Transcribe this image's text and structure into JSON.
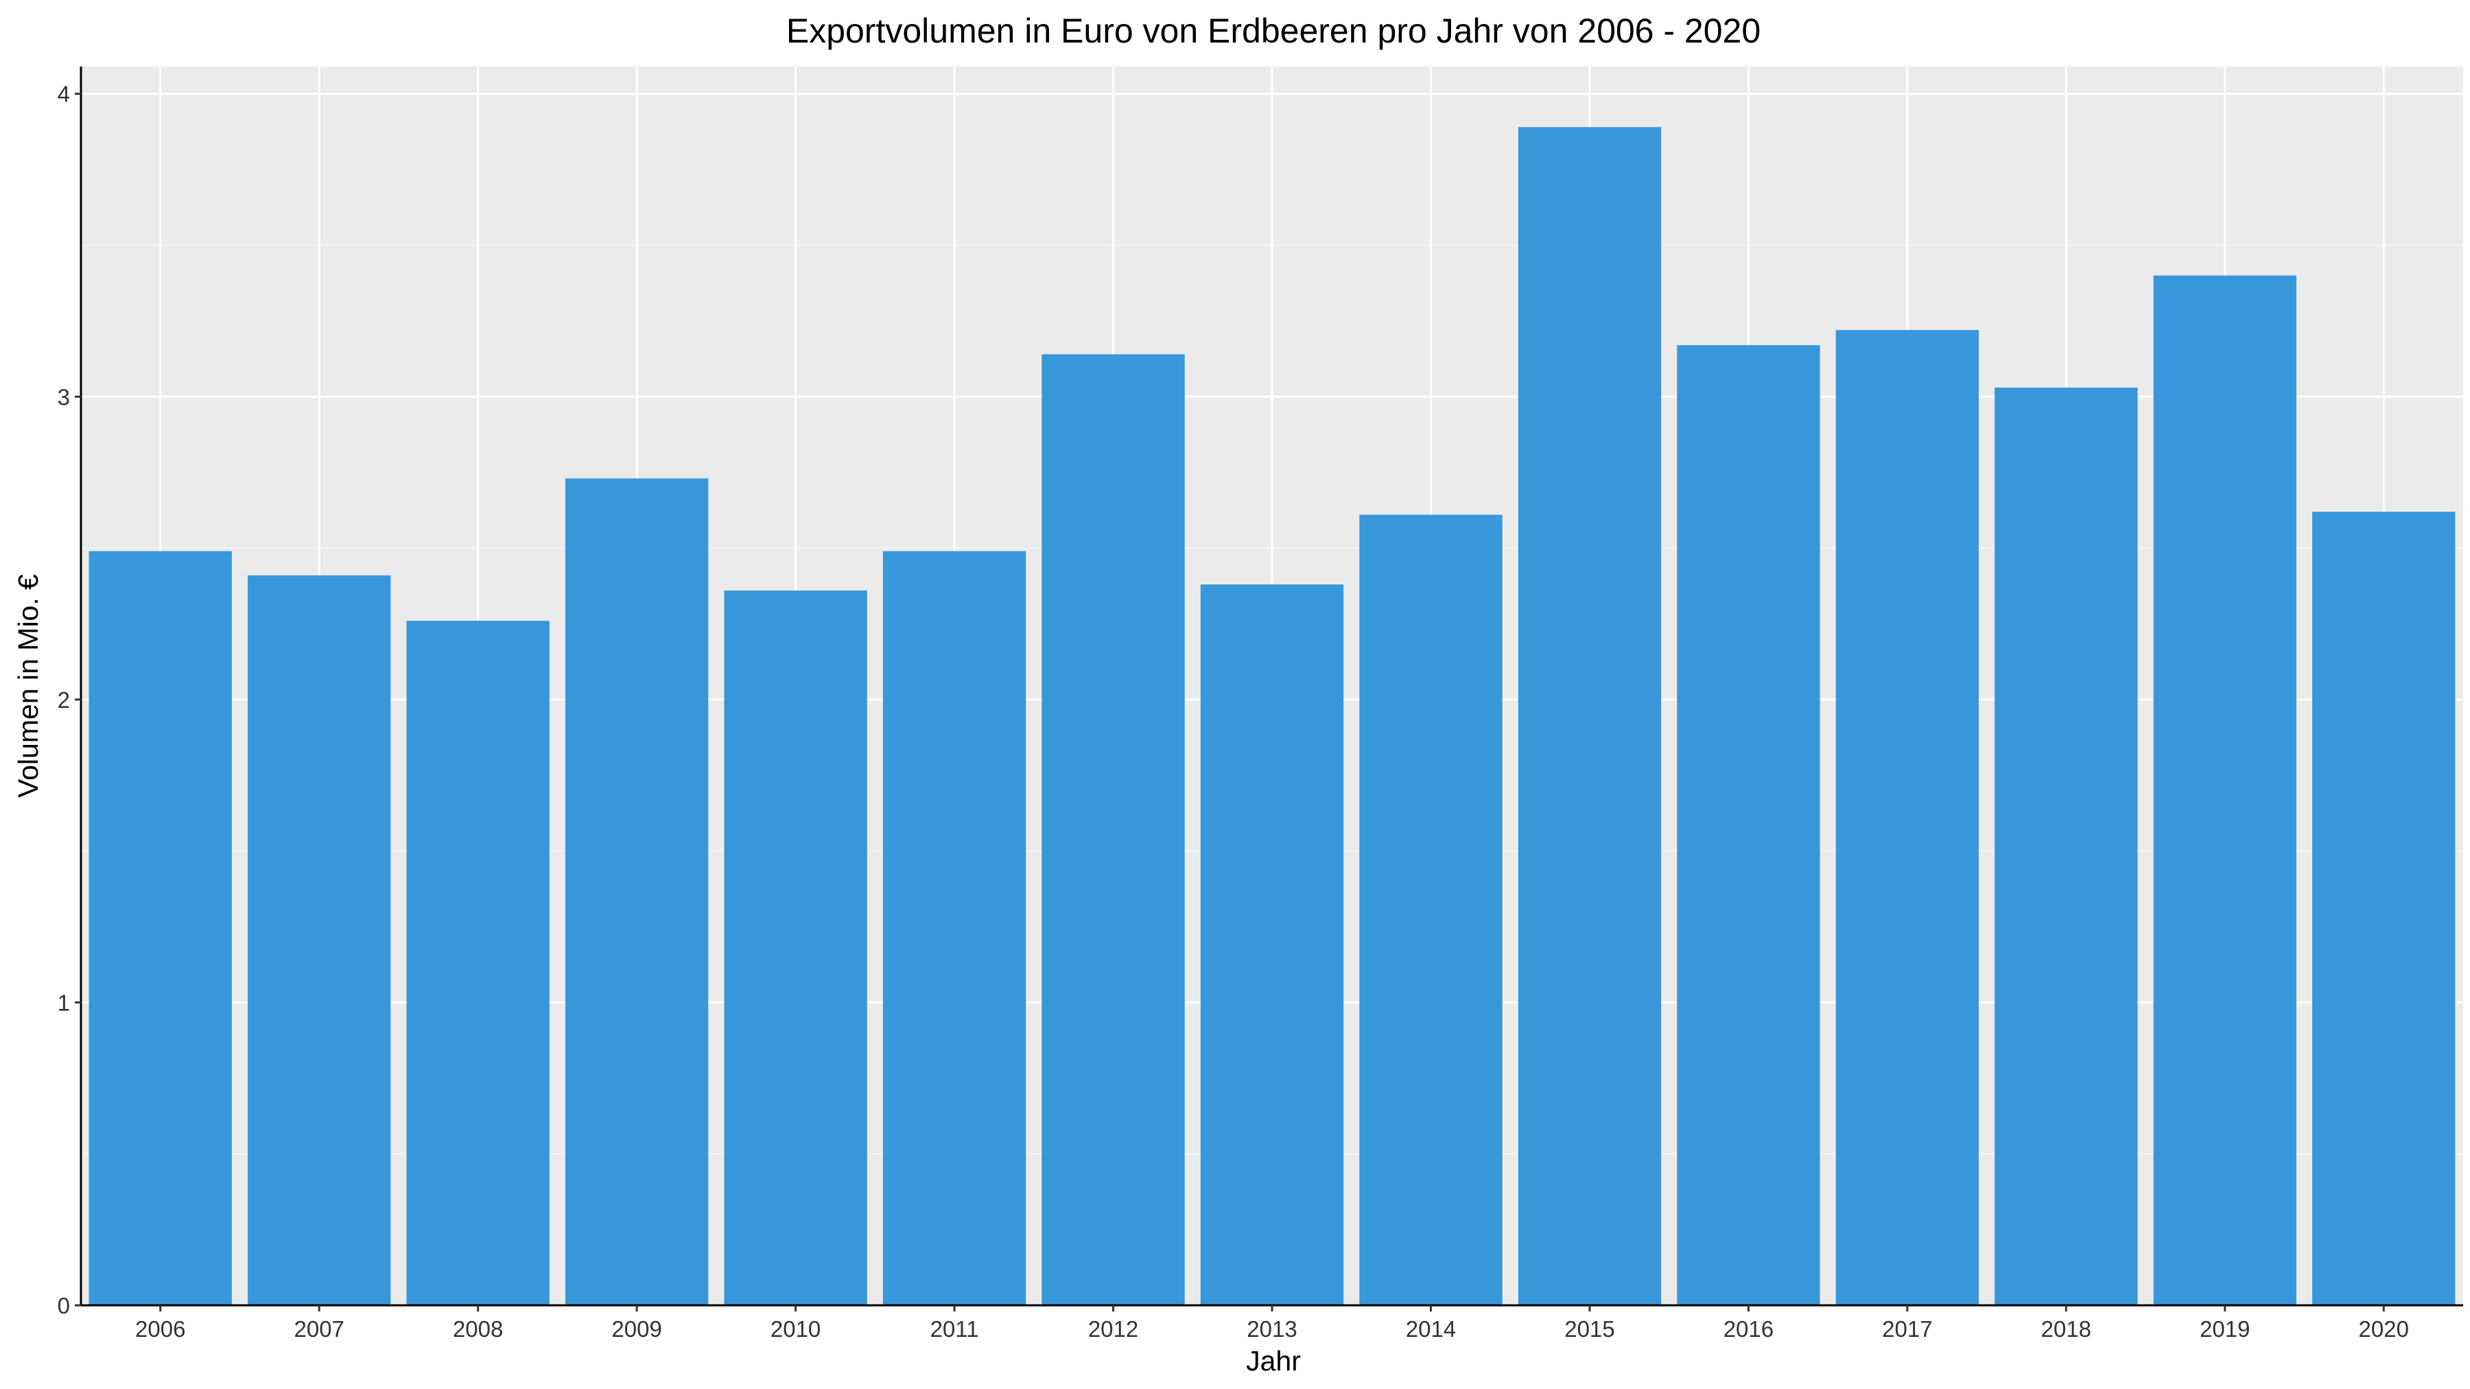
{
  "chart_data": {
    "type": "bar",
    "title": "Exportvolumen in Euro von Erdbeeren pro Jahr von 2006 - 2020",
    "xlabel": "Jahr",
    "ylabel": "Volumen in Mio. €",
    "categories": [
      "2006",
      "2007",
      "2008",
      "2009",
      "2010",
      "2011",
      "2012",
      "2013",
      "2014",
      "2015",
      "2016",
      "2017",
      "2018",
      "2019",
      "2020"
    ],
    "values": [
      2.49,
      2.41,
      2.26,
      2.73,
      2.36,
      2.49,
      3.14,
      2.38,
      2.61,
      3.89,
      3.17,
      3.22,
      3.03,
      3.4,
      2.62
    ],
    "ylim": [
      0,
      4.09
    ],
    "yticks": [
      0,
      1,
      2,
      3,
      4
    ],
    "grid": true,
    "legend": "none",
    "colors": {
      "bar": "#3797DA",
      "panel_background": "#EBEBEB",
      "grid_major": "#FFFFFF",
      "grid_minor": "#F5F5F5",
      "axis_line": "#000000"
    }
  }
}
